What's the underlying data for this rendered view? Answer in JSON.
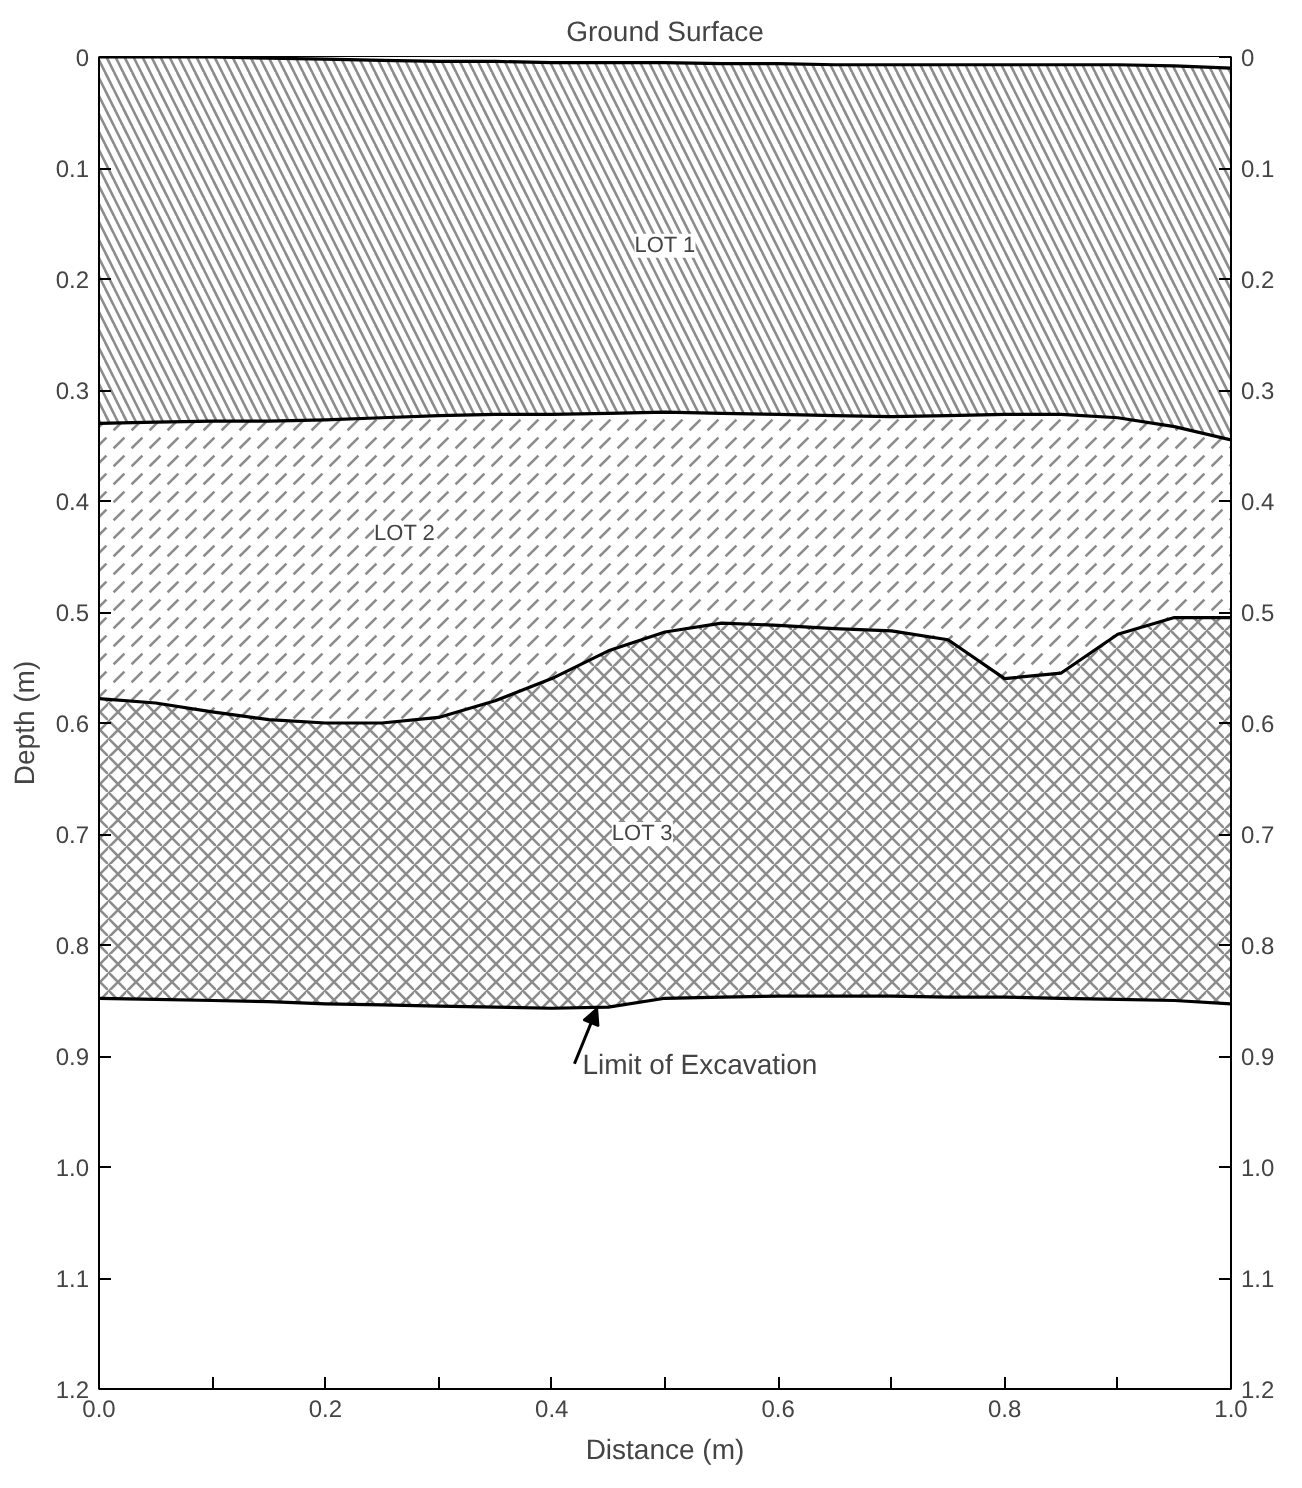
{
  "chart_data": {
    "type": "area",
    "stacked": true,
    "xlabel": "Distance (m)",
    "ylabel": "Depth (m)",
    "x": [
      0,
      0.05,
      0.1,
      0.15,
      0.2,
      0.25,
      0.3,
      0.35,
      0.4,
      0.45,
      0.5,
      0.55,
      0.6,
      0.65,
      0.7,
      0.75,
      0.8,
      0.85,
      0.9,
      0.95,
      1.0
    ],
    "series": [
      {
        "color": "#000000",
        "values": [
          0,
          0,
          0,
          0.001,
          0.002,
          0.003,
          0.004,
          0.004,
          0.005,
          0.005,
          0.005,
          0.006,
          0.006,
          0.007,
          0.007,
          0.007,
          0.007,
          0.007,
          0.007,
          0.008,
          0.01
        ]
      },
      {
        "color": "#000000",
        "values": [
          0.33,
          0.329,
          0.328,
          0.327,
          0.325,
          0.322,
          0.319,
          0.318,
          0.317,
          0.316,
          0.315,
          0.315,
          0.316,
          0.316,
          0.317,
          0.316,
          0.315,
          0.315,
          0.318,
          0.325,
          0.335
        ]
      },
      {
        "color": "#000000",
        "values": [
          0.248,
          0.253,
          0.262,
          0.269,
          0.273,
          0.275,
          0.272,
          0.258,
          0.238,
          0.214,
          0.198,
          0.189,
          0.19,
          0.192,
          0.193,
          0.202,
          0.238,
          0.233,
          0.195,
          0.172,
          0.16
        ]
      },
      {
        "color": "#000000",
        "values": [
          0.27,
          0.267,
          0.26,
          0.254,
          0.253,
          0.254,
          0.26,
          0.276,
          0.297,
          0.321,
          0.33,
          0.337,
          0.334,
          0.331,
          0.329,
          0.322,
          0.287,
          0.293,
          0.329,
          0.345,
          0.348
        ]
      }
    ],
    "annotations": [
      {
        "text": "Ground Surface",
        "x": 0.5,
        "y": 0.005
      },
      {
        "text": "LOT 1",
        "x": 0.5,
        "y": 0.17
      },
      {
        "text": "LOT 2",
        "x": 0.27,
        "y": 0.43
      },
      {
        "text": "LOT 3",
        "x": 0.48,
        "y": 0.7
      },
      {
        "text": "Limit of Excavation",
        "x": 0.44,
        "y": 0.857
      }
    ],
    "xlim": [
      0,
      1.0
    ],
    "xticks": [
      {
        "value": 0,
        "label": "0.0"
      },
      {
        "value": 0.1,
        "label": null
      },
      {
        "value": 0.2,
        "label": "0.2"
      },
      {
        "value": 0.3,
        "label": null
      },
      {
        "value": 0.4,
        "label": "0.4"
      },
      {
        "value": 0.5,
        "label": null
      },
      {
        "value": 0.6,
        "label": "0.6"
      },
      {
        "value": 0.7,
        "label": null
      },
      {
        "value": 0.8,
        "label": "0.8"
      },
      {
        "value": 0.9,
        "label": null
      },
      {
        "value": 1.0,
        "label": "1.0"
      }
    ],
    "ylim": [
      1.2,
      0
    ],
    "yticks": [
      0,
      0.1,
      0.2,
      0.3,
      0.4,
      0.5,
      0.6,
      0.7,
      0.8,
      0.9,
      {
        "value": 1.0,
        "label": "1.0"
      },
      1.1,
      1.2
    ],
    "y2lim": [
      1.2,
      0
    ],
    "y2ticks": [
      0,
      0.1,
      0.2,
      0.3,
      0.4,
      0.5,
      0.6,
      0.7,
      0.8,
      0.9,
      {
        "value": 1.0,
        "label": "1.0"
      },
      1.1,
      1.2
    ],
    "grid": false
  }
}
